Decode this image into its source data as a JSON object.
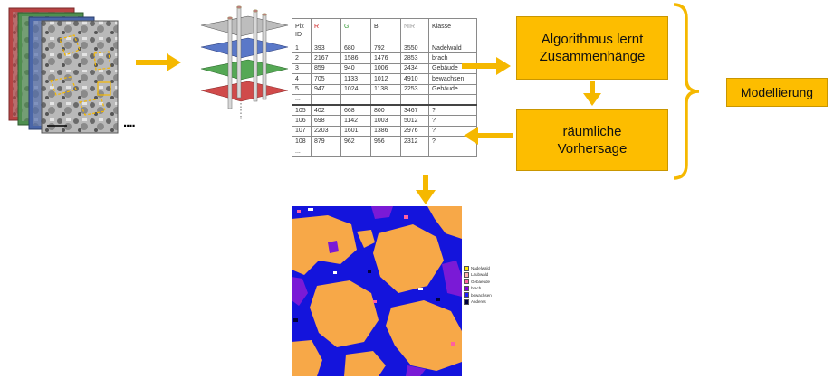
{
  "table": {
    "headers": [
      "Pix ID",
      "R",
      "G",
      "B",
      "NIR",
      "Klasse"
    ],
    "header_colors": [
      "#333333",
      "#cc2222",
      "#3a9a3a",
      "#333333",
      "#999999",
      "#333333"
    ],
    "training_rows": [
      [
        "1",
        "393",
        "680",
        "792",
        "3550",
        "Nadelwald"
      ],
      [
        "2",
        "2167",
        "1586",
        "1476",
        "2853",
        "brach"
      ],
      [
        "3",
        "859",
        "940",
        "1006",
        "2434",
        "Gebäude"
      ],
      [
        "4",
        "705",
        "1133",
        "1012",
        "4910",
        "bewachsen"
      ],
      [
        "5",
        "947",
        "1024",
        "1138",
        "2253",
        "Gebäude"
      ]
    ],
    "ellipsis": "...",
    "prediction_rows": [
      [
        "105",
        "402",
        "668",
        "800",
        "3467",
        "?"
      ],
      [
        "106",
        "698",
        "1142",
        "1003",
        "5012",
        "?"
      ],
      [
        "107",
        "2203",
        "1601",
        "1386",
        "2976",
        "?"
      ],
      [
        "108",
        "879",
        "962",
        "956",
        "2312",
        "?"
      ]
    ]
  },
  "image_stack_ellipsis": "....",
  "boxes": {
    "algorithm_line1": "Algorithmus lernt",
    "algorithm_line2": "Zusammenhänge",
    "prediction_line1": "räumliche",
    "prediction_line2": "Vorhersage",
    "modelling": "Modellierung"
  },
  "legend": [
    {
      "label": "Nadelwald",
      "color": "#FFE800"
    },
    {
      "label": "Laubwald",
      "color": "#FFB0B0"
    },
    {
      "label": "Gebaeude",
      "color": "#FF60A0"
    },
    {
      "label": "brach",
      "color": "#8000E0"
    },
    {
      "label": "bewachsen",
      "color": "#2020FF"
    },
    {
      "label": "Anderes",
      "color": "#000040"
    }
  ],
  "colors": {
    "arrow": "#F5B800",
    "box": "#FDBD00",
    "map_orange": "#F7A848",
    "map_blue": "#1414DC",
    "map_purple": "#7A1AD6"
  }
}
